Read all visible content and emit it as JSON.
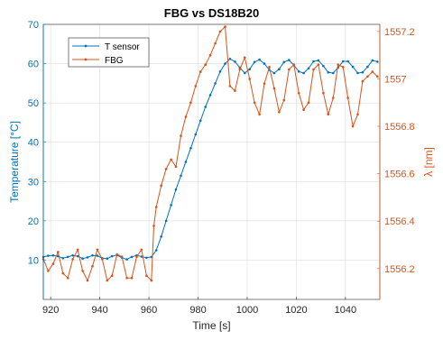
{
  "chart_data": {
    "type": "line",
    "title": "FBG vs DS18B20",
    "xlabel": "Time [s]",
    "ylabel_left": "Temperature [°C]",
    "ylabel_right": "λ [nm]",
    "xlim": [
      917,
      1054
    ],
    "ylim_left": [
      0,
      70
    ],
    "ylim_right": [
      1556.07,
      1557.23
    ],
    "x_ticks": [
      920,
      940,
      960,
      980,
      1000,
      1020,
      1040
    ],
    "y_left_ticks": [
      10,
      20,
      30,
      40,
      50,
      60,
      70
    ],
    "y_right_ticks": [
      1556.2,
      1556.4,
      1556.6,
      1556.8,
      1557,
      1557.2
    ],
    "y_right_tick_labels": [
      "1556.2",
      "1556.4",
      "1556.6",
      "1556.8",
      "1557",
      "1557.2"
    ],
    "grid": true,
    "legend_position": "top-left",
    "series": [
      {
        "name": "T sensor",
        "axis": "left",
        "color": "#0072BD",
        "x": [
          917,
          919,
          921,
          923,
          925,
          927,
          929,
          931,
          933,
          935,
          937,
          939,
          941,
          943,
          945,
          947,
          949,
          951,
          953,
          955,
          957,
          959,
          961,
          963,
          965,
          967,
          969,
          971,
          973,
          975,
          977,
          979,
          981,
          983,
          985,
          987,
          989,
          991,
          993,
          995,
          997,
          999,
          1001,
          1003,
          1005,
          1007,
          1009,
          1011,
          1013,
          1015,
          1017,
          1019,
          1021,
          1023,
          1025,
          1027,
          1029,
          1031,
          1033,
          1035,
          1037,
          1039,
          1041,
          1043,
          1045,
          1047,
          1049,
          1051,
          1053
        ],
        "y": [
          10.8,
          11.1,
          11.2,
          11.0,
          10.5,
          10.8,
          11.2,
          11.0,
          10.4,
          10.7,
          11.2,
          11.1,
          10.5,
          10.4,
          11.0,
          11.3,
          10.6,
          10.2,
          10.8,
          11.2,
          10.9,
          10.6,
          10.8,
          12.5,
          16.0,
          20.0,
          24.0,
          28.0,
          31.5,
          35.0,
          38.5,
          42.0,
          45.5,
          49.0,
          52.0,
          55.0,
          58.0,
          60.0,
          61.2,
          60.5,
          59.0,
          57.6,
          58.6,
          60.4,
          61.0,
          60.0,
          58.4,
          57.6,
          58.6,
          60.4,
          60.9,
          59.6,
          58.0,
          57.6,
          58.8,
          60.6,
          60.8,
          59.4,
          57.8,
          57.6,
          59.0,
          60.6,
          60.6,
          59.2,
          57.6,
          57.8,
          59.2,
          60.8,
          60.5
        ]
      },
      {
        "name": "FBG",
        "axis": "right",
        "color": "#D95319",
        "x": [
          917,
          919,
          921,
          923,
          925,
          927,
          929,
          931,
          933,
          935,
          937,
          939,
          941,
          943,
          945,
          947,
          949,
          951,
          953,
          955,
          957,
          959,
          961,
          962,
          963,
          965,
          967,
          969,
          971,
          973,
          975,
          977,
          979,
          981,
          983,
          985,
          987,
          989,
          991,
          993,
          995,
          997,
          999,
          1001,
          1003,
          1005,
          1007,
          1009,
          1011,
          1013,
          1015,
          1017,
          1019,
          1021,
          1023,
          1025,
          1027,
          1029,
          1031,
          1033,
          1035,
          1037,
          1039,
          1041,
          1043,
          1045,
          1047,
          1049,
          1051,
          1053
        ],
        "y": [
          1556.24,
          1556.19,
          1556.22,
          1556.27,
          1556.18,
          1556.16,
          1556.24,
          1556.28,
          1556.19,
          1556.15,
          1556.21,
          1556.28,
          1556.24,
          1556.15,
          1556.17,
          1556.26,
          1556.25,
          1556.16,
          1556.16,
          1556.25,
          1556.28,
          1556.17,
          1556.15,
          1556.38,
          1556.46,
          1556.55,
          1556.62,
          1556.66,
          1556.63,
          1556.76,
          1556.84,
          1556.9,
          1556.97,
          1557.03,
          1557.06,
          1557.1,
          1557.15,
          1557.2,
          1557.22,
          1556.97,
          1556.95,
          1557.04,
          1557.09,
          1557.0,
          1556.9,
          1556.85,
          1556.98,
          1557.05,
          1556.96,
          1556.86,
          1556.91,
          1557.04,
          1557.06,
          1556.94,
          1556.87,
          1556.9,
          1557.04,
          1557.06,
          1556.94,
          1556.85,
          1556.92,
          1557.06,
          1557.05,
          1556.92,
          1556.8,
          1556.85,
          1556.99,
          1557.01,
          1557.03,
          1557.01
        ]
      }
    ]
  }
}
